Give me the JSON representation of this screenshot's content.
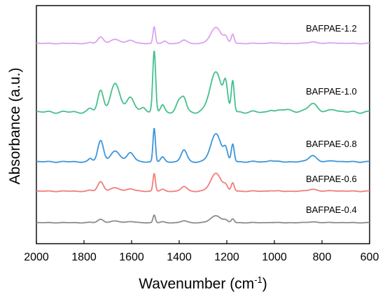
{
  "chart_data": {
    "type": "line",
    "xlabel_main": "Wavenumber (cm",
    "xlabel_sup": "-1",
    "xlabel_close": ")",
    "ylabel": "Absorbance (a.u.)",
    "xlim": [
      2000,
      600
    ],
    "x_ticks": [
      "2000",
      "1800",
      "1600",
      "1400",
      "1200",
      "1000",
      "800",
      "600"
    ],
    "y_axis": "offset stacked spectra, no numeric scale",
    "grid": false,
    "legend": "series labels placed inline at right of each curve",
    "series": [
      {
        "name": "BAFPAE-1.2",
        "color": "#d9a3f0",
        "baseline": 4,
        "peaks": [
          [
            1773,
            8,
            0.05
          ],
          [
            1730,
            12,
            0.38
          ],
          [
            1668,
            20,
            0.23
          ],
          [
            1605,
            14,
            0.2
          ],
          [
            1505,
            5,
            1.0
          ],
          [
            1460,
            8,
            0.12
          ],
          [
            1380,
            12,
            0.2
          ],
          [
            1245,
            22,
            0.95
          ],
          [
            1205,
            8,
            0.3
          ],
          [
            1175,
            6,
            0.55
          ],
          [
            1015,
            10,
            0.05
          ],
          [
            840,
            16,
            0.1
          ],
          [
            750,
            14,
            0.04
          ]
        ]
      },
      {
        "name": "BAFPAE-1.0",
        "color": "#45c08c",
        "baseline": 3,
        "peaks": [
          [
            1773,
            10,
            0.05
          ],
          [
            1730,
            12,
            0.35
          ],
          [
            1668,
            20,
            0.45
          ],
          [
            1605,
            15,
            0.25
          ],
          [
            1550,
            10,
            0.08
          ],
          [
            1505,
            6,
            1.0
          ],
          [
            1470,
            8,
            0.1
          ],
          [
            1400,
            12,
            0.18
          ],
          [
            1380,
            10,
            0.2
          ],
          [
            1245,
            25,
            0.65
          ],
          [
            1205,
            8,
            0.35
          ],
          [
            1175,
            6,
            0.5
          ],
          [
            1015,
            10,
            0.04
          ],
          [
            950,
            20,
            0.05
          ],
          [
            840,
            18,
            0.15
          ],
          [
            750,
            15,
            0.05
          ]
        ]
      },
      {
        "name": "BAFPAE-0.8",
        "color": "#3d96d8",
        "baseline": 2,
        "peaks": [
          [
            1773,
            8,
            0.1
          ],
          [
            1730,
            12,
            0.72
          ],
          [
            1668,
            20,
            0.35
          ],
          [
            1605,
            14,
            0.32
          ],
          [
            1505,
            5,
            1.15
          ],
          [
            1470,
            8,
            0.15
          ],
          [
            1380,
            12,
            0.4
          ],
          [
            1245,
            22,
            0.95
          ],
          [
            1205,
            8,
            0.35
          ],
          [
            1175,
            6,
            0.6
          ],
          [
            1015,
            10,
            0.05
          ],
          [
            840,
            16,
            0.22
          ],
          [
            750,
            14,
            0.04
          ]
        ]
      },
      {
        "name": "BAFPAE-0.6",
        "color": "#f07e7a",
        "baseline": 1,
        "peaks": [
          [
            1773,
            8,
            0.04
          ],
          [
            1730,
            12,
            0.45
          ],
          [
            1668,
            20,
            0.15
          ],
          [
            1605,
            14,
            0.12
          ],
          [
            1505,
            5,
            0.85
          ],
          [
            1470,
            8,
            0.08
          ],
          [
            1380,
            12,
            0.22
          ],
          [
            1245,
            22,
            0.85
          ],
          [
            1205,
            8,
            0.2
          ],
          [
            1175,
            6,
            0.4
          ],
          [
            1015,
            10,
            0.03
          ],
          [
            840,
            16,
            0.1
          ],
          [
            750,
            14,
            0.03
          ]
        ]
      },
      {
        "name": "BAFPAE-0.4",
        "color": "#8c8c8c",
        "baseline": 0,
        "peaks": [
          [
            1773,
            8,
            0.02
          ],
          [
            1730,
            12,
            0.22
          ],
          [
            1668,
            20,
            0.1
          ],
          [
            1605,
            14,
            0.08
          ],
          [
            1505,
            5,
            0.5
          ],
          [
            1470,
            8,
            0.05
          ],
          [
            1380,
            12,
            0.12
          ],
          [
            1245,
            22,
            0.45
          ],
          [
            1205,
            8,
            0.12
          ],
          [
            1175,
            6,
            0.25
          ],
          [
            1015,
            10,
            0.02
          ],
          [
            840,
            16,
            0.06
          ],
          [
            750,
            14,
            0.02
          ]
        ]
      }
    ]
  }
}
